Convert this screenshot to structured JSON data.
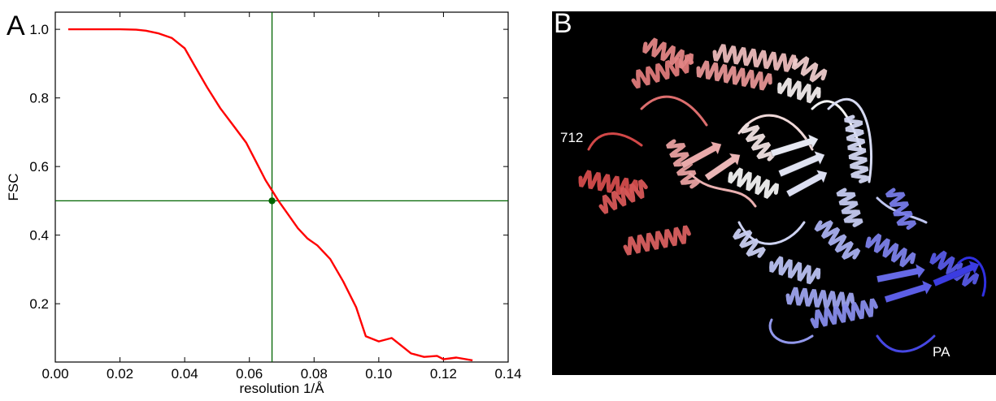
{
  "panel_a": {
    "letter": "A",
    "chart_data": {
      "type": "line",
      "xlabel": "resolution 1/Å",
      "ylabel": "FSC",
      "xlim": [
        0.0,
        0.14
      ],
      "ylim": [
        0.03,
        1.05
      ],
      "xticks": [
        "0.00",
        "0.02",
        "0.04",
        "0.06",
        "0.08",
        "0.10",
        "0.12",
        "0.14"
      ],
      "yticks": [
        "0.2",
        "0.4",
        "0.6",
        "0.8",
        "1.0"
      ],
      "grid": false,
      "series": [
        {
          "color": "#ff0000",
          "x": [
            0.004,
            0.01,
            0.02,
            0.025,
            0.028,
            0.032,
            0.036,
            0.04,
            0.043,
            0.047,
            0.051,
            0.055,
            0.059,
            0.062,
            0.065,
            0.067,
            0.069,
            0.072,
            0.075,
            0.078,
            0.081,
            0.085,
            0.089,
            0.093,
            0.096,
            0.1,
            0.104,
            0.108,
            0.11,
            0.114,
            0.118,
            0.12,
            0.124,
            0.129
          ],
          "y": [
            1.0,
            1.0,
            1.0,
            0.999,
            0.996,
            0.988,
            0.975,
            0.945,
            0.895,
            0.83,
            0.77,
            0.72,
            0.67,
            0.615,
            0.56,
            0.53,
            0.5,
            0.46,
            0.42,
            0.39,
            0.37,
            0.33,
            0.265,
            0.19,
            0.105,
            0.09,
            0.1,
            0.07,
            0.055,
            0.045,
            0.048,
            0.038,
            0.043,
            0.035
          ]
        }
      ],
      "reference_lines": {
        "x": 0.067,
        "y": 0.5,
        "color": "#006400"
      },
      "marker": {
        "x": 0.067,
        "y": 0.5,
        "color": "#006400"
      }
    }
  },
  "panel_b": {
    "letter": "B",
    "background": "#000000",
    "labels": {
      "n_term": "712",
      "c_term": "PA"
    },
    "gradient_colors": [
      "#d04040",
      "#e8a0a0",
      "#f2f2f2",
      "#b8c0f0",
      "#3030e0"
    ]
  }
}
